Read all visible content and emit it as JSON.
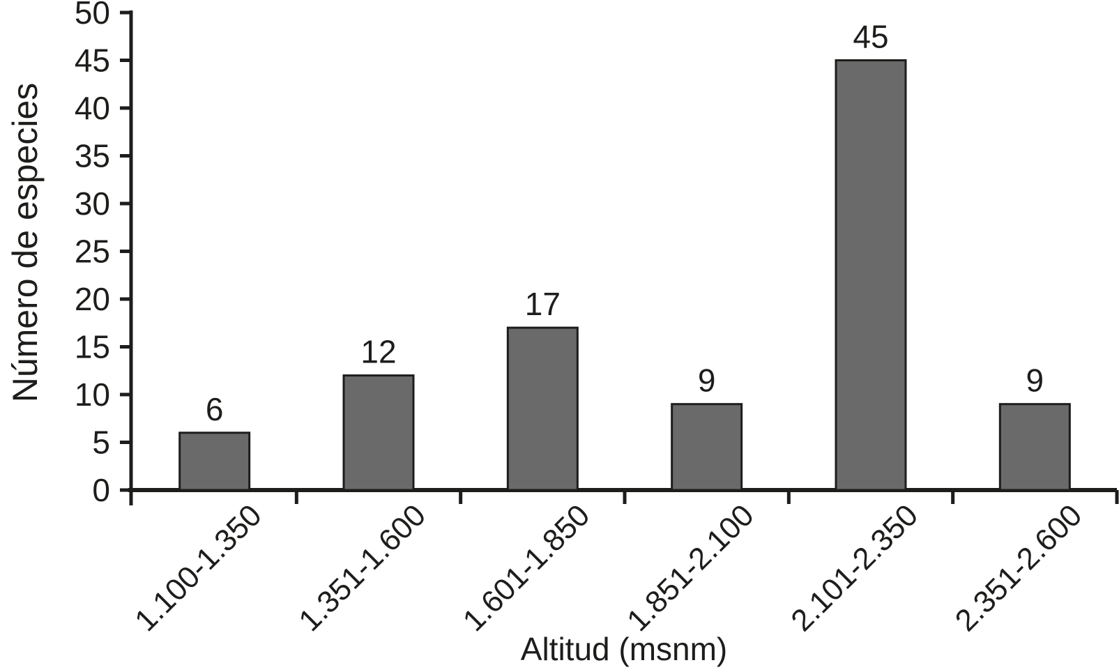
{
  "chart_data": {
    "type": "bar",
    "title": "",
    "xlabel": "Altitud (msnm)",
    "ylabel": "Número de especies",
    "categories": [
      "1.100-1.350",
      "1.351-1.600",
      "1.601-1.850",
      "1.851-2.100",
      "2.101-2.350",
      "2.351-2.600"
    ],
    "values": [
      6,
      12,
      17,
      9,
      45,
      9
    ],
    "bar_value_labels": [
      "6",
      "12",
      "17",
      "9",
      "45",
      "9"
    ],
    "ylim": [
      0,
      50
    ],
    "ytick_step": 5,
    "yticks": [
      0,
      5,
      10,
      15,
      20,
      25,
      30,
      35,
      40,
      45,
      50
    ],
    "ytick_labels": [
      "0",
      "5",
      "10",
      "15",
      "20",
      "25",
      "30",
      "35",
      "40",
      "45",
      "50"
    ],
    "grid": false,
    "legend": null,
    "x_labels_rotation_deg": -45,
    "bar_fill_color": "#6a6a6a",
    "bar_stroke_color": "#1d1d1b",
    "axis_color": "#1d1d1b",
    "text_color": "#1d1d1b",
    "background_color": "#ffffff"
  }
}
